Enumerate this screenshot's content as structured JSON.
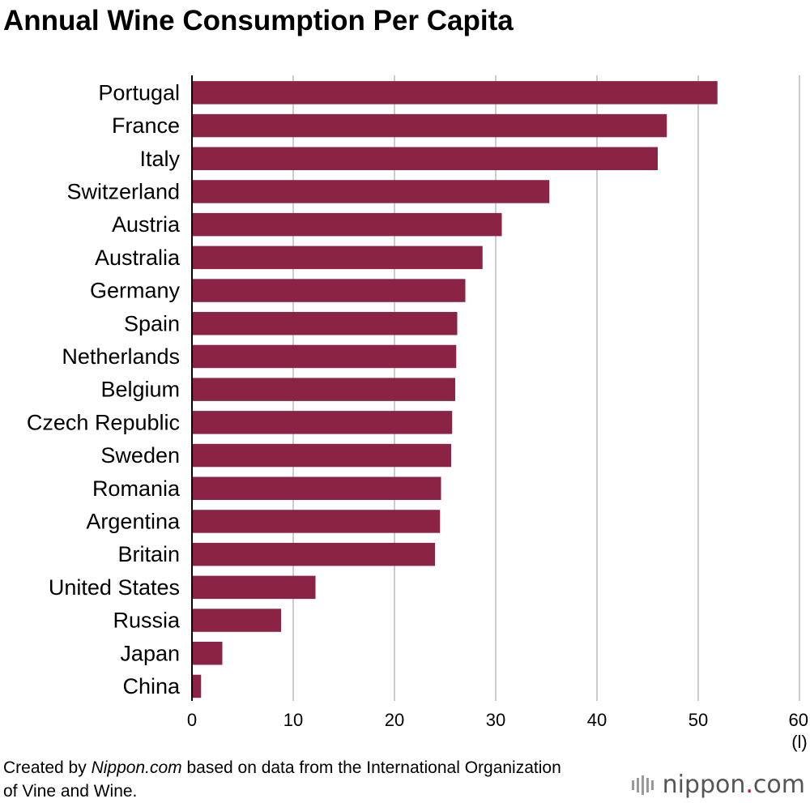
{
  "title": "Annual Wine Consumption Per Capita",
  "source_note": {
    "prefix": "Created by ",
    "site": "Nippon.com",
    "suffix": " based on data from the International Organization of Vine and Wine."
  },
  "logo": {
    "name": "nippon",
    "dot": ".",
    "tld": "com"
  },
  "colors": {
    "bar": "#8b2444",
    "grid": "#cccccc",
    "axis": "#000000"
  },
  "chart_data": {
    "type": "bar",
    "orientation": "horizontal",
    "title": "Annual Wine Consumption Per Capita",
    "unit_label": "(l)",
    "xlim": [
      0,
      60
    ],
    "xticks": [
      0,
      10,
      20,
      30,
      40,
      50,
      60
    ],
    "grid": true,
    "categories": [
      "Portugal",
      "France",
      "Italy",
      "Switzerland",
      "Austria",
      "Australia",
      "Germany",
      "Spain",
      "Netherlands",
      "Belgium",
      "Czech Republic",
      "Sweden",
      "Romania",
      "Argentina",
      "Britain",
      "United States",
      "Russia",
      "Japan",
      "China"
    ],
    "values": [
      51.9,
      46.9,
      46.0,
      35.3,
      30.6,
      28.7,
      27.0,
      26.2,
      26.1,
      26.0,
      25.7,
      25.6,
      24.6,
      24.5,
      24.0,
      12.2,
      8.8,
      3.0,
      0.9
    ]
  }
}
